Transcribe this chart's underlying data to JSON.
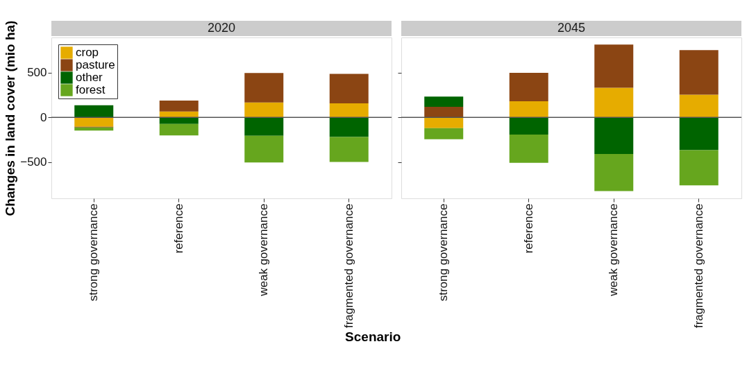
{
  "chart_data": [
    {
      "type": "bar",
      "title": "2020",
      "xlabel": "Scenario",
      "ylabel": "Changes in land cover (mio ha)",
      "stacked": true,
      "legend": "top left",
      "grid": false,
      "categories": [
        "strong governance",
        "reference",
        "weak governance",
        "fragmented governance"
      ],
      "series": [
        {
          "name": "crop",
          "color": "#e6ac00",
          "values": [
            -104,
            67,
            168,
            158
          ]
        },
        {
          "name": "pasture",
          "color": "#8b4513",
          "values": [
            -8,
            122,
            329,
            329
          ]
        },
        {
          "name": "other",
          "color": "#006400",
          "values": [
            137,
            -73,
            -205,
            -218
          ]
        },
        {
          "name": "forest",
          "color": "#66a61e",
          "values": [
            -34,
            -127,
            -298,
            -280
          ]
        }
      ],
      "ylim": [
        -905,
        895
      ],
      "yticks": [
        -500,
        0,
        500
      ],
      "ref_lines": [
        {
          "axis": "y",
          "value": 0,
          "color": "#555555"
        }
      ]
    },
    {
      "type": "bar",
      "title": "2045",
      "stacked": true,
      "grid": false,
      "tick_labels": "x",
      "categories": [
        "strong governance",
        "reference",
        "weak governance",
        "fragmented governance"
      ],
      "series": [
        {
          "name": "crop",
          "color": "#e6ac00",
          "values": [
            -119,
            181,
            332,
            254
          ]
        },
        {
          "name": "pasture",
          "color": "#8b4513",
          "values": [
            119,
            319,
            484,
            500
          ]
        },
        {
          "name": "other",
          "color": "#006400",
          "values": [
            114,
            -192,
            -409,
            -365
          ]
        },
        {
          "name": "forest",
          "color": "#66a61e",
          "values": [
            -124,
            -316,
            -414,
            -394
          ]
        }
      ],
      "ylim": [
        -905,
        895
      ],
      "yticks": [
        -500,
        0,
        500
      ],
      "ref_lines": [
        {
          "axis": "y",
          "value": 0,
          "color": "#555555"
        }
      ]
    }
  ]
}
